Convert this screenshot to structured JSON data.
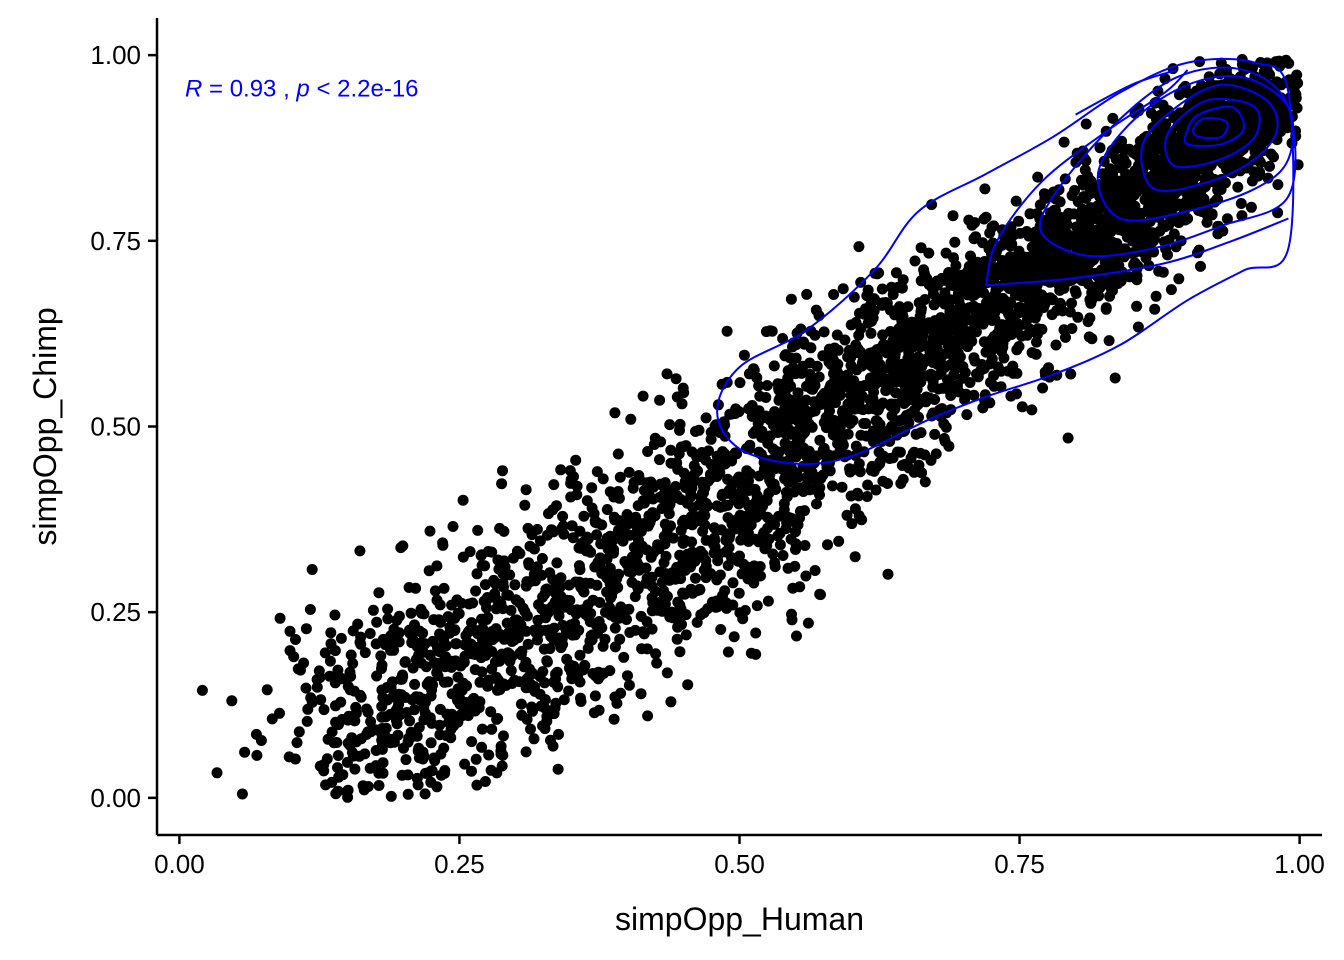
{
  "chart_data": {
    "type": "scatter",
    "xlabel": "simpOpp_Human",
    "ylabel": "simpOpp_Chimp",
    "xlim": [
      -0.02,
      1.02
    ],
    "ylim": [
      -0.05,
      1.05
    ],
    "x_ticks": [
      "0.00",
      "0.25",
      "0.50",
      "0.75",
      "1.00"
    ],
    "y_ticks": [
      "0.00",
      "0.25",
      "0.50",
      "0.75",
      "1.00"
    ],
    "x_tick_values": [
      0,
      0.25,
      0.5,
      0.75,
      1.0
    ],
    "y_tick_values": [
      0,
      0.25,
      0.5,
      0.75,
      1.0
    ],
    "grid": false,
    "annotation": {
      "r_symbol": "R",
      "r_text": " = 0.93 , ",
      "p_symbol": "p",
      "p_text": " < 2.2e-16",
      "color": "#0000ff"
    },
    "point_color": "#000000",
    "density_color": "#0000ff",
    "clusters": [
      {
        "center": [
          0.93,
          0.91
        ],
        "sd": [
          0.04,
          0.045
        ],
        "corr": 0.6,
        "count": 700
      },
      {
        "center": [
          0.82,
          0.76
        ],
        "sd": [
          0.09,
          0.09
        ],
        "corr": 0.85,
        "count": 1100
      },
      {
        "center": [
          0.62,
          0.55
        ],
        "sd": [
          0.1,
          0.11
        ],
        "corr": 0.75,
        "count": 900
      },
      {
        "center": [
          0.42,
          0.33
        ],
        "sd": [
          0.1,
          0.11
        ],
        "corr": 0.65,
        "count": 800
      },
      {
        "center": [
          0.22,
          0.15
        ],
        "sd": [
          0.08,
          0.09
        ],
        "corr": 0.5,
        "count": 500
      }
    ],
    "density_contours": [
      {
        "type": "closed",
        "points": [
          [
            0.48,
            0.52
          ],
          [
            0.5,
            0.47
          ],
          [
            0.55,
            0.45
          ],
          [
            0.6,
            0.46
          ],
          [
            0.67,
            0.51
          ],
          [
            0.72,
            0.54
          ],
          [
            0.78,
            0.57
          ],
          [
            0.84,
            0.61
          ],
          [
            0.9,
            0.67
          ],
          [
            0.95,
            0.71
          ],
          [
            0.99,
            0.74
          ],
          [
            0.99,
            0.95
          ],
          [
            0.96,
            0.99
          ],
          [
            0.9,
            0.99
          ],
          [
            0.84,
            0.95
          ],
          [
            0.78,
            0.89
          ],
          [
            0.72,
            0.84
          ],
          [
            0.66,
            0.79
          ],
          [
            0.62,
            0.71
          ],
          [
            0.56,
            0.63
          ],
          [
            0.5,
            0.58
          ]
        ]
      },
      {
        "type": "open",
        "points": [
          [
            0.72,
            0.69
          ],
          [
            0.73,
            0.75
          ],
          [
            0.77,
            0.83
          ],
          [
            0.83,
            0.9
          ],
          [
            0.88,
            0.95
          ],
          [
            0.9,
            0.98
          ]
        ]
      },
      {
        "type": "open",
        "points": [
          [
            0.72,
            0.69
          ],
          [
            0.8,
            0.7
          ],
          [
            0.88,
            0.72
          ],
          [
            0.94,
            0.75
          ],
          [
            0.99,
            0.78
          ]
        ]
      },
      {
        "type": "open",
        "points": [
          [
            0.8,
            0.92
          ],
          [
            0.85,
            0.96
          ],
          [
            0.89,
            0.98
          ]
        ]
      },
      {
        "type": "closed",
        "points": [
          [
            0.81,
            0.73
          ],
          [
            0.87,
            0.74
          ],
          [
            0.93,
            0.77
          ],
          [
            0.99,
            0.81
          ],
          [
            0.99,
            0.93
          ],
          [
            0.95,
            0.98
          ],
          [
            0.89,
            0.97
          ],
          [
            0.83,
            0.9
          ],
          [
            0.78,
            0.81
          ],
          [
            0.77,
            0.76
          ]
        ]
      },
      {
        "type": "closed",
        "points": [
          [
            0.84,
            0.78
          ],
          [
            0.9,
            0.79
          ],
          [
            0.96,
            0.82
          ],
          [
            0.99,
            0.86
          ],
          [
            0.99,
            0.93
          ],
          [
            0.95,
            0.97
          ],
          [
            0.9,
            0.96
          ],
          [
            0.85,
            0.91
          ],
          [
            0.82,
            0.84
          ]
        ]
      },
      {
        "type": "closed",
        "points": [
          [
            0.87,
            0.82
          ],
          [
            0.92,
            0.83
          ],
          [
            0.96,
            0.86
          ],
          [
            0.98,
            0.9
          ],
          [
            0.97,
            0.94
          ],
          [
            0.93,
            0.96
          ],
          [
            0.89,
            0.93
          ],
          [
            0.86,
            0.88
          ]
        ]
      },
      {
        "type": "closed",
        "points": [
          [
            0.89,
            0.85
          ],
          [
            0.93,
            0.86
          ],
          [
            0.96,
            0.89
          ],
          [
            0.96,
            0.93
          ],
          [
            0.92,
            0.94
          ],
          [
            0.89,
            0.91
          ],
          [
            0.88,
            0.88
          ]
        ]
      },
      {
        "type": "closed",
        "points": [
          [
            0.9,
            0.88
          ],
          [
            0.93,
            0.88
          ],
          [
            0.95,
            0.9
          ],
          [
            0.94,
            0.93
          ],
          [
            0.91,
            0.92
          ],
          [
            0.9,
            0.9
          ]
        ]
      },
      {
        "type": "closed",
        "points": [
          [
            0.91,
            0.89
          ],
          [
            0.93,
            0.89
          ],
          [
            0.935,
            0.91
          ],
          [
            0.915,
            0.915
          ],
          [
            0.905,
            0.9
          ]
        ]
      }
    ]
  }
}
